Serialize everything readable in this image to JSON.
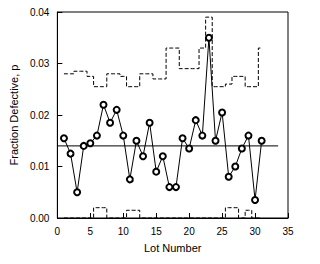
{
  "chart_data": {
    "type": "line",
    "x_label": "Lot Number",
    "y_label": "Fraction Defective, p",
    "x": [
      1,
      2,
      3,
      4,
      5,
      6,
      7,
      8,
      9,
      10,
      11,
      12,
      13,
      14,
      15,
      16,
      17,
      18,
      19,
      20,
      21,
      22,
      23,
      24,
      25,
      26,
      27,
      28,
      29,
      30,
      31
    ],
    "series": [
      {
        "type": "line",
        "color": "#000000",
        "marker": "circle",
        "line_style": "solid",
        "values": [
          0.0155,
          0.0125,
          0.005,
          0.014,
          0.0145,
          0.016,
          0.022,
          0.0185,
          0.021,
          0.016,
          0.0075,
          0.015,
          0.012,
          0.0185,
          0.009,
          0.012,
          0.006,
          0.006,
          0.0155,
          0.0135,
          0.019,
          0.016,
          0.035,
          0.015,
          0.0205,
          0.008,
          0.01,
          0.0135,
          0.016,
          0.0035,
          0.015
        ]
      },
      {
        "type": "step",
        "color": "#000000",
        "line_style": "dashed",
        "values": [
          0.028,
          0.028,
          0.0285,
          0.0285,
          0.0275,
          0.0255,
          0.0255,
          0.028,
          0.028,
          0.0275,
          0.0255,
          0.0255,
          0.028,
          0.028,
          0.027,
          0.027,
          0.033,
          0.033,
          0.029,
          0.029,
          0.029,
          0.033,
          0.039,
          0.0255,
          0.0255,
          0.026,
          0.0275,
          0.0275,
          0.0255,
          0.0255,
          0.033
        ]
      },
      {
        "type": "step",
        "color": "#000000",
        "line_style": "dashed",
        "values": [
          0,
          0,
          0,
          0,
          0,
          0.002,
          0.002,
          0,
          0,
          0,
          0.0015,
          0.0015,
          0,
          0,
          0,
          0,
          0,
          0,
          0,
          0,
          0,
          0,
          0,
          0,
          0,
          0.002,
          0.002,
          0,
          0.0015,
          0,
          0
        ]
      },
      {
        "type": "line",
        "color": "#000000",
        "line_style": "solid",
        "x": [
          0,
          33.5
        ],
        "values": [
          0.014,
          0.014
        ]
      }
    ],
    "xlim": [
      0,
      35
    ],
    "xticks": [
      0,
      5,
      10,
      15,
      20,
      25,
      30,
      35
    ],
    "ylim": [
      0,
      0.04
    ],
    "yticks": [
      {
        "value": 0,
        "label": "0.00"
      },
      {
        "value": 0.01,
        "label": "0.01"
      },
      {
        "value": 0.02,
        "label": "0.02"
      },
      {
        "value": 0.03,
        "label": "0.03"
      },
      {
        "value": 0.04,
        "label": "0.04"
      }
    ]
  }
}
